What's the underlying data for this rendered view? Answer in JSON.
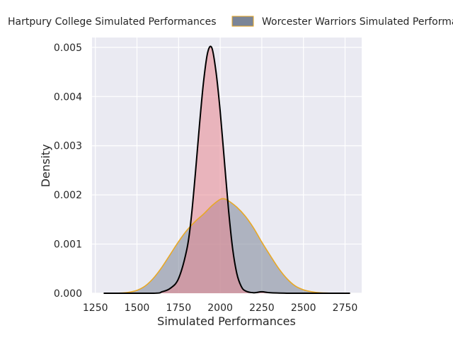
{
  "chart_data": {
    "type": "area",
    "xlabel": "Simulated Performances",
    "ylabel": "Density",
    "xlim": [
      1230,
      2850
    ],
    "ylim": [
      0,
      0.0052
    ],
    "grid": true,
    "legend_position": "top",
    "xticks": [
      1250,
      1500,
      1750,
      2000,
      2250,
      2500,
      2750
    ],
    "yticks": [
      0.0,
      0.001,
      0.002,
      0.003,
      0.004,
      0.005
    ],
    "xtick_labels": [
      "1250",
      "1500",
      "1750",
      "2000",
      "2250",
      "2500",
      "2750"
    ],
    "ytick_labels": [
      "0.000",
      "0.001",
      "0.002",
      "0.003",
      "0.004",
      "0.005"
    ],
    "series": [
      {
        "name": "Hartpury College Simulated Performances",
        "fill": "#e8878f",
        "line": "#000000",
        "x": [
          1300,
          1600,
          1650,
          1700,
          1750,
          1800,
          1825,
          1850,
          1875,
          1900,
          1925,
          1950,
          1975,
          2000,
          2025,
          2050,
          2075,
          2100,
          2125,
          2150,
          2200,
          2250,
          2300,
          2400,
          2500,
          2780
        ],
        "y": [
          0,
          0,
          3e-05,
          0.0001,
          0.0003,
          0.0009,
          0.0015,
          0.0024,
          0.0034,
          0.0043,
          0.0049,
          0.00499,
          0.0045,
          0.0037,
          0.0027,
          0.0017,
          0.0009,
          0.0004,
          0.00015,
          5e-05,
          1e-05,
          3e-05,
          1e-05,
          0,
          0,
          0
        ]
      },
      {
        "name": "Worcester Warriors Simulated Performances",
        "fill": "#7b8597",
        "line": "#e8a825",
        "x": [
          1300,
          1400,
          1450,
          1500,
          1550,
          1600,
          1650,
          1700,
          1750,
          1800,
          1850,
          1900,
          1950,
          2000,
          2025,
          2050,
          2100,
          2150,
          2200,
          2250,
          2300,
          2350,
          2400,
          2450,
          2500,
          2550,
          2600,
          2700,
          2780
        ],
        "y": [
          0,
          5e-06,
          2e-05,
          6e-05,
          0.00015,
          0.00031,
          0.00053,
          0.00079,
          0.00105,
          0.00128,
          0.00146,
          0.00161,
          0.00178,
          0.00191,
          0.00192,
          0.00188,
          0.00175,
          0.00157,
          0.00133,
          0.00104,
          0.00077,
          0.00051,
          0.0003,
          0.00015,
          7e-05,
          3e-05,
          1e-05,
          0,
          0
        ]
      }
    ]
  }
}
